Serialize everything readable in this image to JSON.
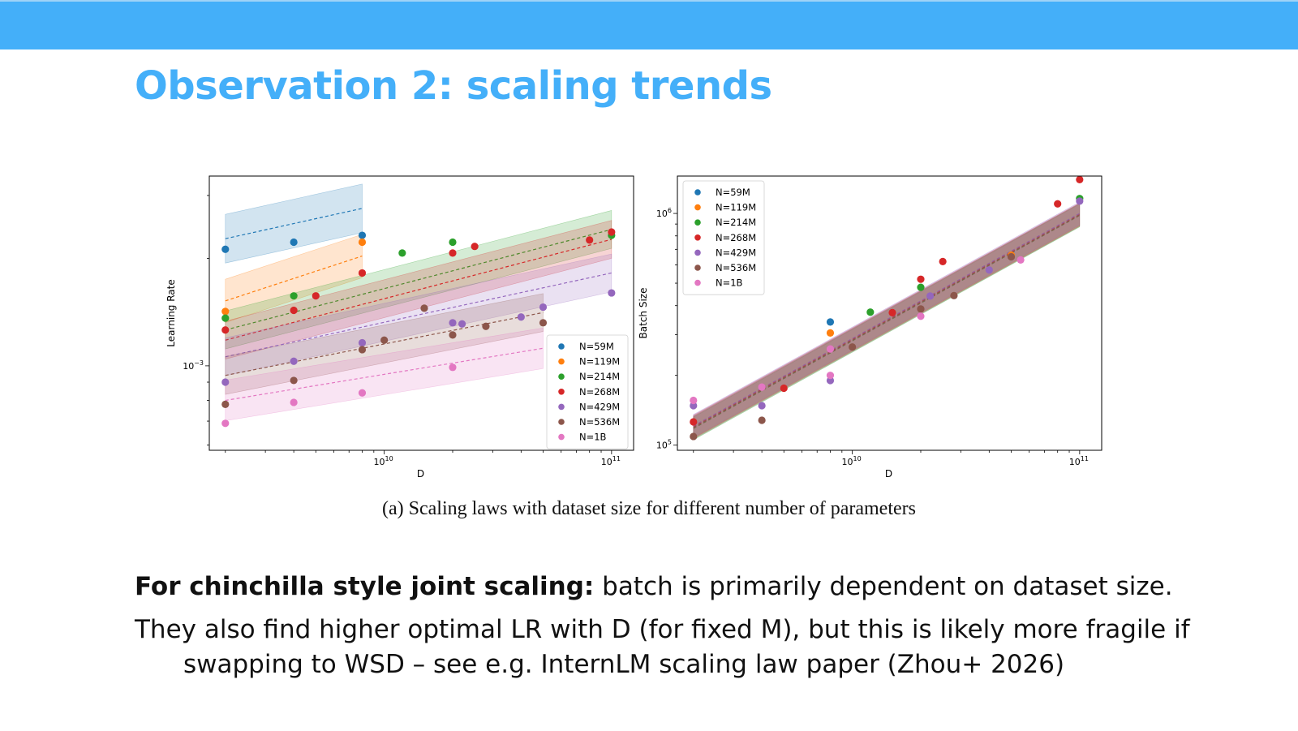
{
  "slide": {
    "title": "Observation 2: scaling trends",
    "caption": "(a) Scaling laws with dataset size for different number of parameters",
    "line1_bold": "For chinchilla style joint scaling:",
    "line1_rest": " batch is primarily dependent on dataset size.",
    "line2": "They also find higher optimal LR with D (for fixed M), but this is likely more fragile if swapping to WSD – see e.g. InternLM scaling law paper (Zhou+ 2026)",
    "accent_color": "#44aff9"
  },
  "chart_data": [
    {
      "type": "scatter",
      "xlabel": "D",
      "ylabel": "Learning Rate",
      "x_scale": "log",
      "y_scale": "log",
      "xlim": [
        1700000000.0,
        125000000000.0
      ],
      "ylim": [
        0.00058,
        0.0034
      ],
      "x_ticks": [
        {
          "value": 10000000000.0,
          "base": "10",
          "exp": "10"
        },
        {
          "value": 100000000000.0,
          "base": "10",
          "exp": "11"
        }
      ],
      "y_ticks": [
        {
          "value": 0.001,
          "base": "10",
          "exp": "−3"
        }
      ],
      "legend_position": "lower-right",
      "series": [
        {
          "name": "N=59M",
          "color": "#1f77b4",
          "points": [
            [
              2000000000.0,
              0.00212
            ],
            [
              4000000000.0,
              0.00222
            ],
            [
              8000000000.0,
              0.00232
            ]
          ],
          "fit": [
            [
              2000000000.0,
              0.00227
            ],
            [
              8000000000.0,
              0.00276
            ]
          ],
          "band": 1.17
        },
        {
          "name": "N=119M",
          "color": "#ff7f0e",
          "points": [
            [
              2000000000.0,
              0.00142
            ],
            [
              8000000000.0,
              0.00222
            ]
          ],
          "fit": [
            [
              2000000000.0,
              0.00152
            ],
            [
              8000000000.0,
              0.00203
            ]
          ],
          "band": 1.15
        },
        {
          "name": "N=214M",
          "color": "#2ca02c",
          "points": [
            [
              2000000000.0,
              0.00136
            ],
            [
              4000000000.0,
              0.00157
            ],
            [
              12000000000.0,
              0.00207
            ],
            [
              20000000000.0,
              0.00222
            ],
            [
              100000000000.0,
              0.00232
            ]
          ],
          "fit": [
            [
              2000000000.0,
              0.00126
            ],
            [
              100000000000.0,
              0.00241
            ]
          ],
          "band": 1.13
        },
        {
          "name": "N=268M",
          "color": "#d62728",
          "points": [
            [
              2000000000.0,
              0.00126
            ],
            [
              4000000000.0,
              0.00143
            ],
            [
              5000000000.0,
              0.00157
            ],
            [
              8000000000.0,
              0.00182
            ],
            [
              20000000000.0,
              0.00207
            ],
            [
              25000000000.0,
              0.00216
            ],
            [
              80000000000.0,
              0.00225
            ],
            [
              100000000000.0,
              0.00237
            ]
          ],
          "fit": [
            [
              2000000000.0,
              0.00118
            ],
            [
              100000000000.0,
              0.00226
            ]
          ],
          "band": 1.13
        },
        {
          "name": "N=429M",
          "color": "#9467bd",
          "points": [
            [
              2000000000.0,
              0.0009
            ],
            [
              4000000000.0,
              0.00103
            ],
            [
              8000000000.0,
              0.00116
            ],
            [
              20000000000.0,
              0.00132
            ],
            [
              22000000000.0,
              0.00131
            ],
            [
              40000000000.0,
              0.00137
            ],
            [
              50000000000.0,
              0.00146
            ],
            [
              100000000000.0,
              0.0016
            ]
          ],
          "fit": [
            [
              2000000000.0,
              0.00106
            ],
            [
              100000000000.0,
              0.00182
            ]
          ],
          "band": 1.13
        },
        {
          "name": "N=536M",
          "color": "#8c564b",
          "points": [
            [
              2000000000.0,
              0.00078
            ],
            [
              4000000000.0,
              0.00091
            ],
            [
              8000000000.0,
              0.00111
            ],
            [
              10000000000.0,
              0.00118
            ],
            [
              15000000000.0,
              0.00145
            ],
            [
              20000000000.0,
              0.00122
            ],
            [
              28000000000.0,
              0.00129
            ],
            [
              50000000000.0,
              0.00132
            ]
          ],
          "fit": [
            [
              2000000000.0,
              0.00094
            ],
            [
              50000000000.0,
              0.00141
            ]
          ],
          "band": 1.13
        },
        {
          "name": "N=1B",
          "color": "#e377c2",
          "points": [
            [
              2000000000.0,
              0.00069
            ],
            [
              4000000000.0,
              0.00079
            ],
            [
              8000000000.0,
              0.00084
            ],
            [
              20000000000.0,
              0.00099
            ]
          ],
          "fit": [
            [
              2000000000.0,
              0.0008
            ],
            [
              50000000000.0,
              0.00112
            ]
          ],
          "band": 1.14
        }
      ]
    },
    {
      "type": "scatter",
      "xlabel": "D",
      "ylabel": "Batch Size",
      "x_scale": "log",
      "y_scale": "log",
      "xlim": [
        1700000000.0,
        125000000000.0
      ],
      "ylim": [
        95000.0,
        1450000.0
      ],
      "x_ticks": [
        {
          "value": 10000000000.0,
          "base": "10",
          "exp": "10"
        },
        {
          "value": 100000000000.0,
          "base": "10",
          "exp": "11"
        }
      ],
      "y_ticks": [
        {
          "value": 100000.0,
          "base": "10",
          "exp": "5"
        },
        {
          "value": 1000000.0,
          "base": "10",
          "exp": "6"
        }
      ],
      "legend_position": "upper-left",
      "series": [
        {
          "name": "N=59M",
          "color": "#1f77b4",
          "points": [
            [
              8000000000.0,
              340000
            ]
          ],
          "fit": null,
          "band": 1
        },
        {
          "name": "N=119M",
          "color": "#ff7f0e",
          "points": [
            [
              8000000000.0,
              305000
            ],
            [
              50000000000.0,
              660000
            ]
          ],
          "fit": null,
          "band": 1
        },
        {
          "name": "N=214M",
          "color": "#2ca02c",
          "points": [
            [
              12000000000.0,
              375000
            ],
            [
              20000000000.0,
              480000
            ],
            [
              100000000000.0,
              1160000
            ]
          ],
          "fit": [
            [
              2000000000.0,
              118000
            ],
            [
              100000000000.0,
              980000
            ]
          ],
          "band": 1.12
        },
        {
          "name": "N=268M",
          "color": "#d62728",
          "points": [
            [
              2000000000.0,
              126000
            ],
            [
              5000000000.0,
              176000
            ],
            [
              15000000000.0,
              373000
            ],
            [
              20000000000.0,
              520000
            ],
            [
              25000000000.0,
              620000
            ],
            [
              80000000000.0,
              1100000
            ],
            [
              100000000000.0,
              1400000
            ]
          ],
          "fit": [
            [
              2000000000.0,
              120000
            ],
            [
              100000000000.0,
              990000
            ]
          ],
          "band": 1.12
        },
        {
          "name": "N=429M",
          "color": "#9467bd",
          "points": [
            [
              2000000000.0,
              148000
            ],
            [
              4000000000.0,
              148000
            ],
            [
              8000000000.0,
              190000
            ],
            [
              22000000000.0,
              440000
            ],
            [
              40000000000.0,
              570000
            ],
            [
              100000000000.0,
              1130000
            ]
          ],
          "fit": [
            [
              2000000000.0,
              121000
            ],
            [
              100000000000.0,
              1000000
            ]
          ],
          "band": 1.12
        },
        {
          "name": "N=536M",
          "color": "#8c564b",
          "points": [
            [
              2000000000.0,
              109000
            ],
            [
              4000000000.0,
              128000
            ],
            [
              10000000000.0,
              265000
            ],
            [
              20000000000.0,
              387000
            ],
            [
              28000000000.0,
              442000
            ],
            [
              50000000000.0,
              650000
            ]
          ],
          "fit": [
            [
              2000000000.0,
              119000
            ],
            [
              100000000000.0,
              985000
            ]
          ],
          "band": 1.12
        },
        {
          "name": "N=1B",
          "color": "#e377c2",
          "points": [
            [
              2000000000.0,
              156000
            ],
            [
              4000000000.0,
              178000
            ],
            [
              8000000000.0,
              200000
            ],
            [
              8000000000.0,
              260000
            ],
            [
              20000000000.0,
              360000
            ],
            [
              55000000000.0,
              630000
            ]
          ],
          "fit": null,
          "band": 1
        }
      ]
    }
  ]
}
